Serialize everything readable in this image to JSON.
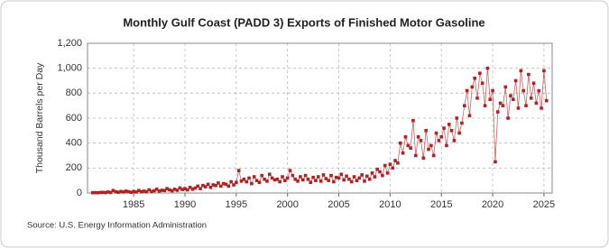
{
  "chart_data": {
    "type": "scatter",
    "title": "Monthly Gulf Coast (PADD 3) Exports of Finished Motor Gasoline",
    "y_label": "Thousand Barrels per Day",
    "source": "Source: U.S. Energy Information Administration",
    "xlim": [
      1980.5,
      2025.8
    ],
    "ylim": [
      0,
      1200
    ],
    "xticks": [
      1985,
      1990,
      1995,
      2000,
      2005,
      2010,
      2015,
      2020,
      2025
    ],
    "yticks": [
      0,
      200,
      400,
      600,
      800,
      {
        "value": 1000,
        "label": "1,000"
      },
      {
        "value": 1200,
        "label": "1,200"
      }
    ],
    "grid": true,
    "x": [
      1981,
      1981.25,
      1981.5,
      1981.75,
      1982,
      1982.25,
      1982.5,
      1982.75,
      1983,
      1983.25,
      1983.5,
      1983.75,
      1984,
      1984.25,
      1984.5,
      1984.75,
      1985,
      1985.25,
      1985.5,
      1985.75,
      1986,
      1986.25,
      1986.5,
      1986.75,
      1987,
      1987.25,
      1987.5,
      1987.75,
      1988,
      1988.25,
      1988.5,
      1988.75,
      1989,
      1989.25,
      1989.5,
      1989.75,
      1990,
      1990.25,
      1990.5,
      1990.75,
      1991,
      1991.25,
      1991.5,
      1991.75,
      1992,
      1992.25,
      1992.5,
      1992.75,
      1993,
      1993.25,
      1993.5,
      1993.75,
      1994,
      1994.25,
      1994.5,
      1994.75,
      1995,
      1995.25,
      1995.5,
      1995.75,
      1996,
      1996.25,
      1996.5,
      1996.75,
      1997,
      1997.25,
      1997.5,
      1997.75,
      1998,
      1998.25,
      1998.5,
      1998.75,
      1999,
      1999.25,
      1999.5,
      1999.75,
      2000,
      2000.25,
      2000.5,
      2000.75,
      2001,
      2001.25,
      2001.5,
      2001.75,
      2002,
      2002.25,
      2002.5,
      2002.75,
      2003,
      2003.25,
      2003.5,
      2003.75,
      2004,
      2004.25,
      2004.5,
      2004.75,
      2005,
      2005.25,
      2005.5,
      2005.75,
      2006,
      2006.25,
      2006.5,
      2006.75,
      2007,
      2007.25,
      2007.5,
      2007.75,
      2008,
      2008.25,
      2008.5,
      2008.75,
      2009,
      2009.25,
      2009.5,
      2009.75,
      2010,
      2010.25,
      2010.5,
      2010.75,
      2011,
      2011.25,
      2011.5,
      2011.75,
      2012,
      2012.25,
      2012.5,
      2012.75,
      2013,
      2013.25,
      2013.5,
      2013.75,
      2014,
      2014.25,
      2014.5,
      2014.75,
      2015,
      2015.25,
      2015.5,
      2015.75,
      2016,
      2016.25,
      2016.5,
      2016.75,
      2017,
      2017.25,
      2017.5,
      2017.75,
      2018,
      2018.25,
      2018.5,
      2018.75,
      2019,
      2019.25,
      2019.5,
      2019.75,
      2020,
      2020.25,
      2020.5,
      2020.75,
      2021,
      2021.25,
      2021.5,
      2021.75,
      2022,
      2022.25,
      2022.5,
      2022.75,
      2023,
      2023.25,
      2023.5,
      2023.75,
      2024,
      2024.25,
      2024.5,
      2024.75,
      2025,
      2025.25
    ],
    "series": [
      {
        "color": "#b22222",
        "values": [
          2,
          3,
          2,
          4,
          5,
          3,
          8,
          4,
          20,
          10,
          6,
          12,
          8,
          15,
          10,
          5,
          12,
          8,
          20,
          10,
          15,
          10,
          25,
          12,
          18,
          30,
          15,
          22,
          20,
          35,
          25,
          18,
          30,
          22,
          40,
          28,
          35,
          25,
          45,
          30,
          40,
          55,
          35,
          60,
          50,
          70,
          45,
          65,
          60,
          80,
          55,
          75,
          70,
          55,
          90,
          65,
          85,
          180,
          95,
          110,
          90,
          120,
          75,
          130,
          100,
          85,
          140,
          110,
          95,
          150,
          120,
          105,
          110,
          90,
          130,
          100,
          120,
          180,
          140,
          110,
          95,
          130,
          105,
          140,
          110,
          85,
          125,
          100,
          130,
          95,
          145,
          115,
          100,
          140,
          90,
          125,
          120,
          150,
          105,
          135,
          110,
          90,
          130,
          100,
          120,
          145,
          95,
          135,
          110,
          160,
          130,
          190,
          170,
          140,
          220,
          160,
          230,
          200,
          260,
          240,
          400,
          320,
          450,
          380,
          360,
          580,
          300,
          450,
          420,
          280,
          500,
          350,
          380,
          300,
          480,
          420,
          450,
          520,
          380,
          550,
          500,
          420,
          600,
          480,
          560,
          700,
          820,
          620,
          850,
          920,
          760,
          960,
          880,
          700,
          1000,
          750,
          820,
          250,
          650,
          720,
          700,
          850,
          600,
          780,
          750,
          900,
          680,
          980,
          820,
          700,
          950,
          760,
          880,
          720,
          820,
          680,
          980,
          740
        ]
      }
    ]
  }
}
